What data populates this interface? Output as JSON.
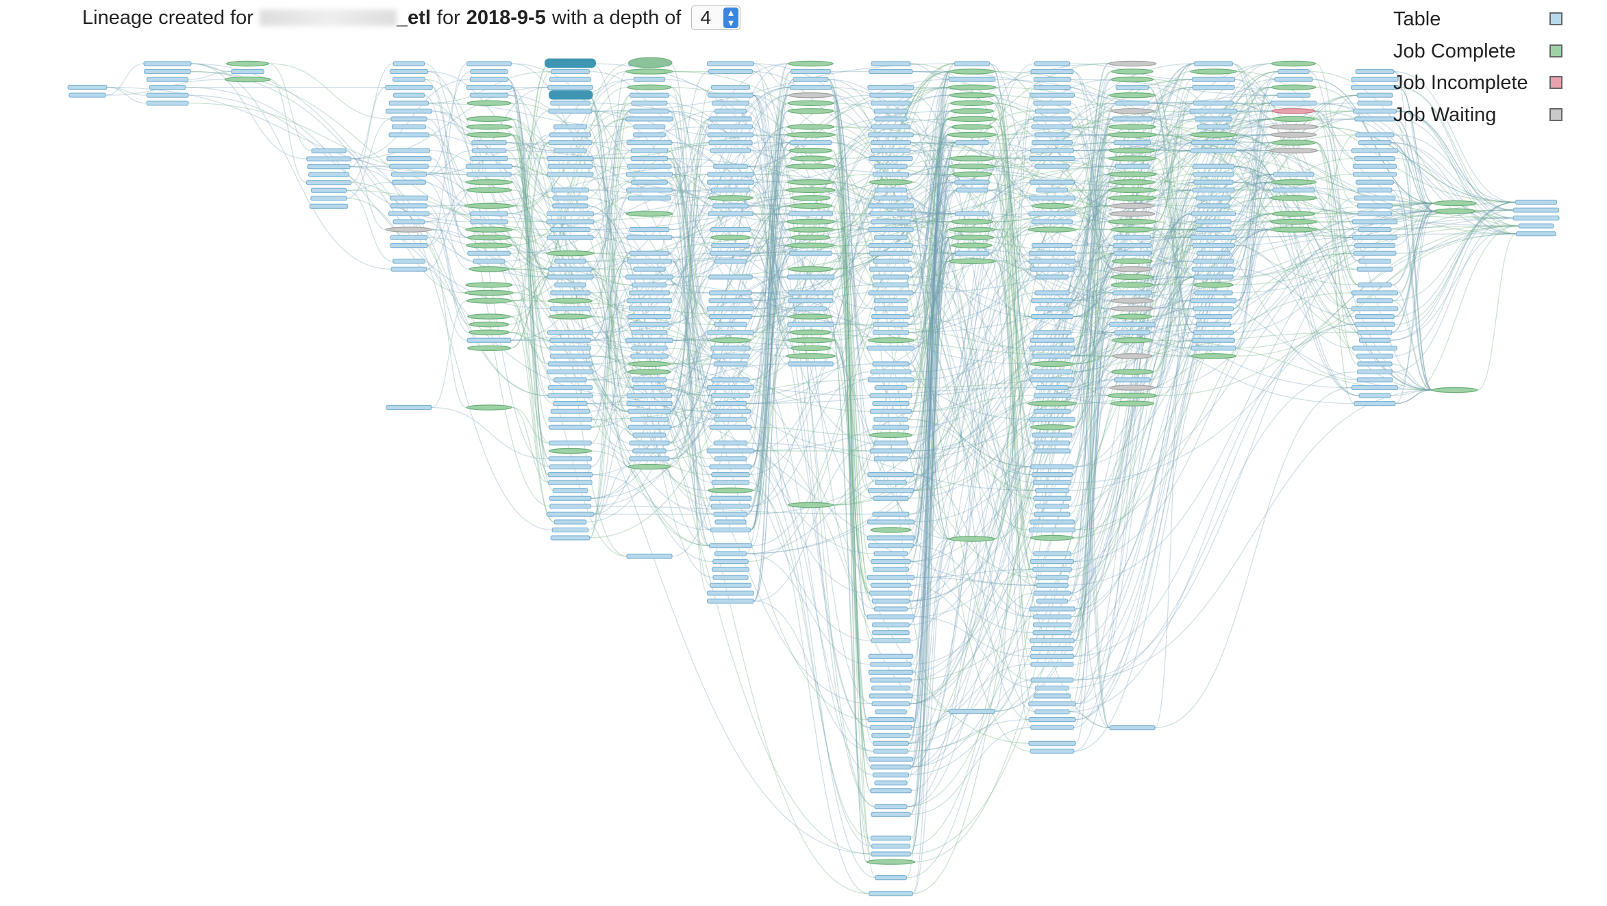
{
  "header": {
    "prefix": "Lineage created for",
    "name": "_etl",
    "middle": "for",
    "date": "2018-9-5",
    "suffix": "with a depth of",
    "depth": "4"
  },
  "legend": [
    {
      "label": "Table",
      "color": "#b8d9ec"
    },
    {
      "label": "Job Complete",
      "color": "#9ed2a6"
    },
    {
      "label": "Job Incomplete",
      "color": "#e6a2ad"
    },
    {
      "label": "Job Waiting",
      "color": "#c9c9c9"
    }
  ]
}
